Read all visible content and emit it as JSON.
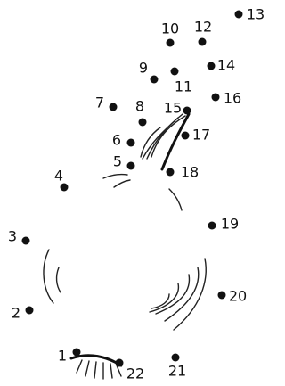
{
  "dots": [
    "1",
    "2",
    "3",
    "4",
    "5",
    "6",
    "7",
    "8",
    "9",
    "10",
    "11",
    "12",
    "13",
    "14",
    "15",
    "16",
    "17",
    "18",
    "19",
    "20",
    "21",
    "22"
  ]
}
